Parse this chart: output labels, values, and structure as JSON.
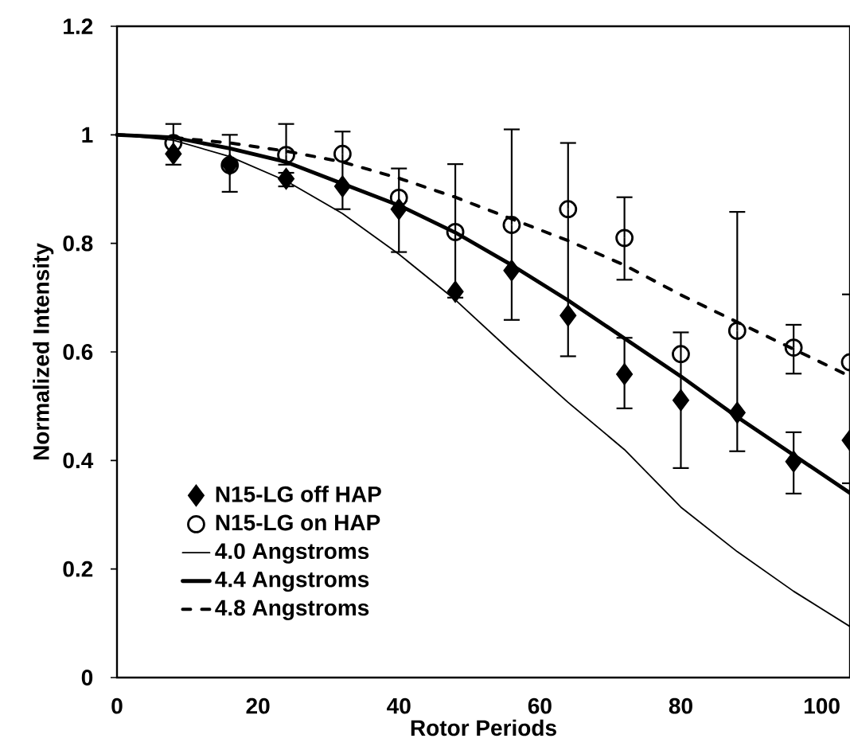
{
  "chart_data": {
    "type": "line",
    "xlabel": "Rotor Periods",
    "ylabel": "Normalized Intensity",
    "xlim": [
      0,
      104
    ],
    "ylim": [
      0,
      1.2
    ],
    "xticks": [
      0,
      20,
      40,
      60,
      80,
      100
    ],
    "yticks": [
      0,
      0.2,
      0.4,
      0.6,
      0.8,
      1,
      1.2
    ],
    "legend": "bottom left",
    "grid": false,
    "series": [
      {
        "name": "N15-LG off HAP",
        "type": "scatter",
        "marker": "diamond",
        "color": "#000000",
        "x": [
          8,
          16,
          24,
          32,
          40,
          48,
          56,
          64,
          72,
          80,
          88,
          96,
          104
        ],
        "values": [
          0.965,
          0.945,
          0.919,
          0.905,
          0.863,
          0.711,
          0.75,
          0.667,
          0.559,
          0.511,
          0.488,
          0.398,
          0.437
        ],
        "errors": [
          null,
          null,
          [
            0.905,
            0.93
          ],
          null,
          [
            0.784,
            0.938
          ],
          null,
          null,
          null,
          [
            0.496,
            0.626
          ],
          [
            0.386,
            0.636
          ],
          null,
          [
            0.339,
            0.452
          ],
          null
        ]
      },
      {
        "name": "N15-LG on HAP",
        "type": "scatter",
        "marker": "circle",
        "color": "#000000",
        "x": [
          8,
          16,
          24,
          32,
          40,
          48,
          56,
          64,
          72,
          80,
          88,
          96,
          104
        ],
        "values": [
          0.985,
          0.944,
          0.963,
          0.965,
          0.884,
          0.821,
          0.834,
          0.863,
          0.81,
          0.596,
          0.639,
          0.608,
          0.581
        ],
        "errors": [
          [
            0.945,
            1.02
          ],
          [
            0.895,
            1.0
          ],
          [
            0.945,
            1.02
          ],
          [
            0.863,
            1.006
          ],
          null,
          [
            0.7,
            0.946
          ],
          [
            0.659,
            1.01
          ],
          [
            0.592,
            0.985
          ],
          [
            0.733,
            0.885
          ],
          null,
          [
            0.417,
            0.858
          ],
          [
            0.56,
            0.65
          ],
          [
            0.358,
            0.706
          ]
        ]
      },
      {
        "name": "4.0 Angstroms",
        "line_style": "solid",
        "color": "#000000",
        "x": [
          0,
          8,
          16,
          24,
          32,
          40,
          48,
          56,
          64,
          72,
          80,
          88,
          96,
          104
        ],
        "values": [
          1,
          0.99,
          0.96,
          0.915,
          0.855,
          0.78,
          0.696,
          0.6,
          0.507,
          0.42,
          0.314,
          0.232,
          0.159,
          0.094
        ]
      },
      {
        "name": "4.4 Angstroms",
        "line_style": "solid",
        "color": "#000000",
        "x": [
          0,
          8,
          16,
          24,
          32,
          40,
          48,
          56,
          64,
          72,
          80,
          88,
          96,
          104
        ],
        "values": [
          1,
          0.995,
          0.975,
          0.95,
          0.91,
          0.87,
          0.82,
          0.76,
          0.695,
          0.625,
          0.555,
          0.48,
          0.41,
          0.34
        ]
      },
      {
        "name": "4.8 Angstroms",
        "line_style": "dashed",
        "color": "#000000",
        "x": [
          0,
          8,
          16,
          24,
          32,
          40,
          48,
          56,
          64,
          72,
          80,
          88,
          96,
          104
        ],
        "values": [
          1,
          0.995,
          0.985,
          0.97,
          0.95,
          0.92,
          0.885,
          0.845,
          0.805,
          0.76,
          0.705,
          0.655,
          0.605,
          0.555
        ]
      }
    ]
  }
}
